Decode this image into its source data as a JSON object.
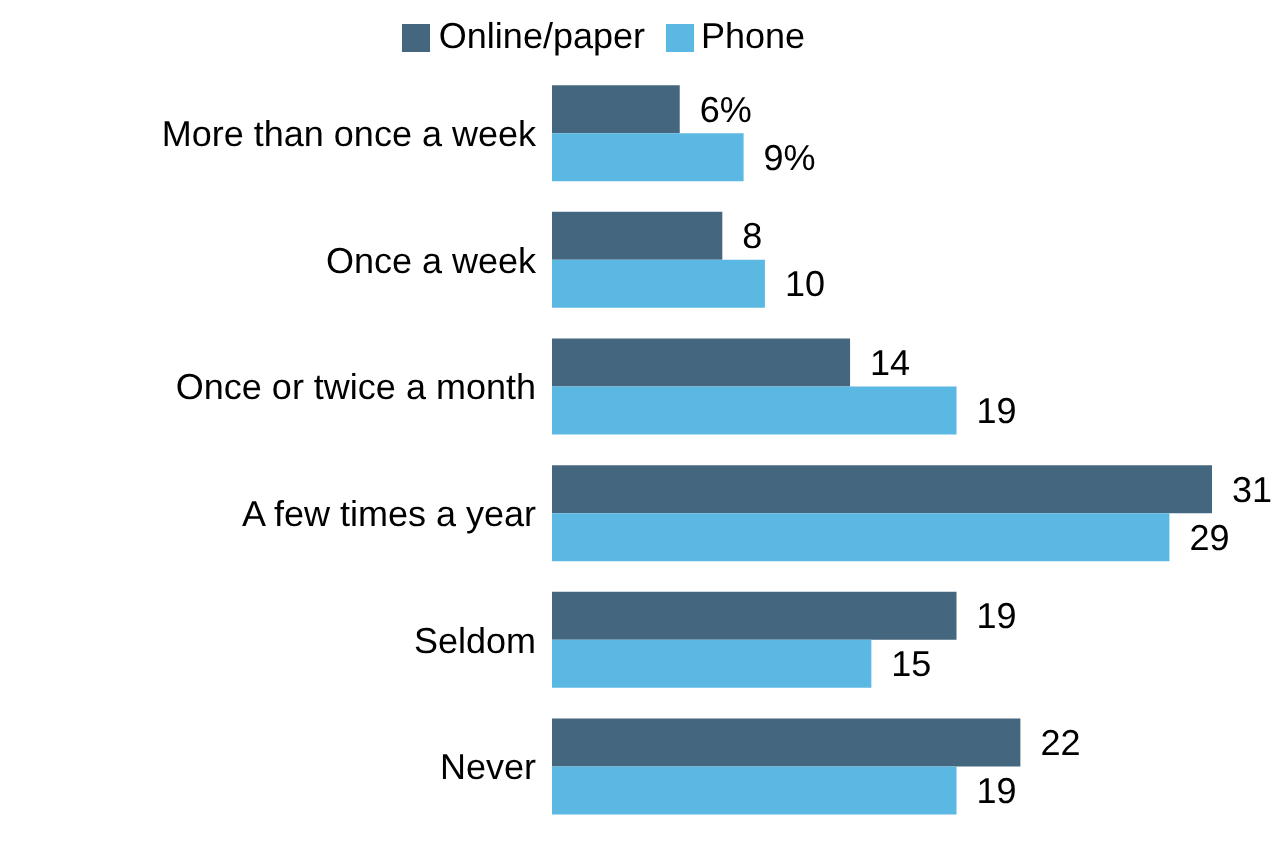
{
  "chart_data": {
    "type": "bar",
    "orientation": "horizontal",
    "categories": [
      "More than once a week",
      "Once a week",
      "Once or twice a month",
      "A few times a year",
      "Seldom",
      "Never"
    ],
    "series": [
      {
        "name": "Online/paper",
        "color": "#44677f",
        "values": [
          6,
          8,
          14,
          31,
          19,
          22
        ],
        "value_labels": [
          "6%",
          "8",
          "14",
          "31",
          "19",
          "22"
        ]
      },
      {
        "name": "Phone",
        "color": "#5bb8e3",
        "values": [
          9,
          10,
          19,
          29,
          15,
          19
        ],
        "value_labels": [
          "9%",
          "10",
          "19",
          "29",
          "15",
          "19"
        ]
      }
    ],
    "legend": "top"
  }
}
